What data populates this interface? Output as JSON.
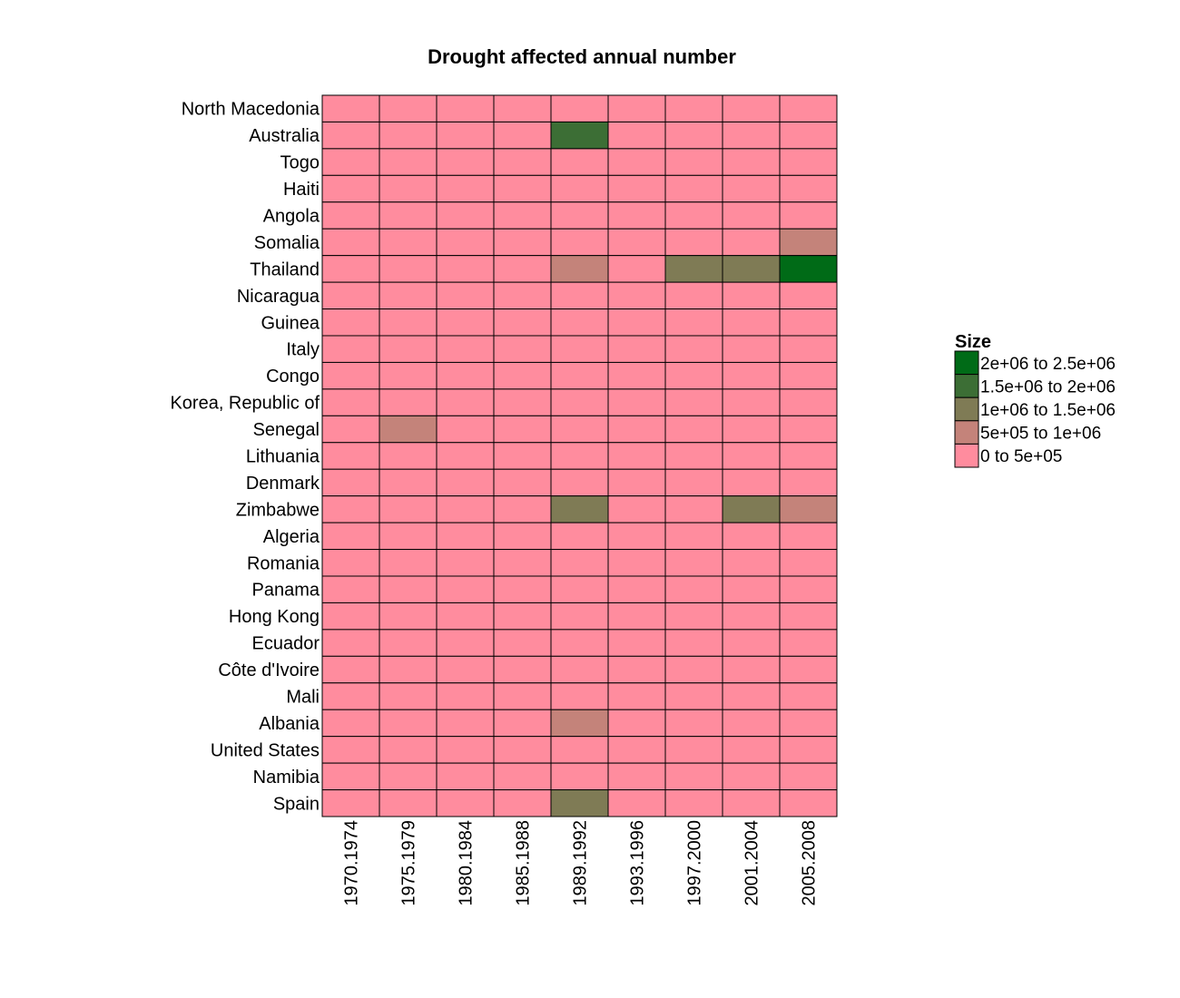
{
  "chart_data": {
    "type": "heatmap",
    "title": "Drought affected annual number",
    "xlabel": "",
    "ylabel": "",
    "x_categories": [
      "1970.1974",
      "1975.1979",
      "1980.1984",
      "1985.1988",
      "1989.1992",
      "1993.1996",
      "1997.2000",
      "2001.2004",
      "2005.2008"
    ],
    "y_categories": [
      "North Macedonia",
      "Australia",
      "Togo",
      "Haiti",
      "Angola",
      "Somalia",
      "Thailand",
      "Nicaragua",
      "Guinea",
      "Italy",
      "Congo",
      "Korea, Republic of",
      "Senegal",
      "Lithuania",
      "Denmark",
      "Zimbabwe",
      "Algeria",
      "Romania",
      "Panama",
      "Hong Kong",
      "Ecuador",
      "Côte d'Ivoire",
      "Mali",
      "Albania",
      "United States",
      "Namibia",
      "Spain"
    ],
    "bin_index_matrix": [
      [
        0,
        0,
        0,
        0,
        0,
        0,
        0,
        0,
        0
      ],
      [
        0,
        0,
        0,
        0,
        3,
        0,
        0,
        0,
        0
      ],
      [
        0,
        0,
        0,
        0,
        0,
        0,
        0,
        0,
        0
      ],
      [
        0,
        0,
        0,
        0,
        0,
        0,
        0,
        0,
        0
      ],
      [
        0,
        0,
        0,
        0,
        0,
        0,
        0,
        0,
        0
      ],
      [
        0,
        0,
        0,
        0,
        0,
        0,
        0,
        0,
        1
      ],
      [
        0,
        0,
        0,
        0,
        1,
        0,
        2,
        2,
        4
      ],
      [
        0,
        0,
        0,
        0,
        0,
        0,
        0,
        0,
        0
      ],
      [
        0,
        0,
        0,
        0,
        0,
        0,
        0,
        0,
        0
      ],
      [
        0,
        0,
        0,
        0,
        0,
        0,
        0,
        0,
        0
      ],
      [
        0,
        0,
        0,
        0,
        0,
        0,
        0,
        0,
        0
      ],
      [
        0,
        0,
        0,
        0,
        0,
        0,
        0,
        0,
        0
      ],
      [
        0,
        1,
        0,
        0,
        0,
        0,
        0,
        0,
        0
      ],
      [
        0,
        0,
        0,
        0,
        0,
        0,
        0,
        0,
        0
      ],
      [
        0,
        0,
        0,
        0,
        0,
        0,
        0,
        0,
        0
      ],
      [
        0,
        0,
        0,
        0,
        2,
        0,
        0,
        2,
        1
      ],
      [
        0,
        0,
        0,
        0,
        0,
        0,
        0,
        0,
        0
      ],
      [
        0,
        0,
        0,
        0,
        0,
        0,
        0,
        0,
        0
      ],
      [
        0,
        0,
        0,
        0,
        0,
        0,
        0,
        0,
        0
      ],
      [
        0,
        0,
        0,
        0,
        0,
        0,
        0,
        0,
        0
      ],
      [
        0,
        0,
        0,
        0,
        0,
        0,
        0,
        0,
        0
      ],
      [
        0,
        0,
        0,
        0,
        0,
        0,
        0,
        0,
        0
      ],
      [
        0,
        0,
        0,
        0,
        0,
        0,
        0,
        0,
        0
      ],
      [
        0,
        0,
        0,
        0,
        1,
        0,
        0,
        0,
        0
      ],
      [
        0,
        0,
        0,
        0,
        0,
        0,
        0,
        0,
        0
      ],
      [
        0,
        0,
        0,
        0,
        0,
        0,
        0,
        0,
        0
      ],
      [
        0,
        0,
        0,
        0,
        2,
        0,
        0,
        0,
        0
      ]
    ],
    "legend": {
      "title": "Size",
      "placement": "right",
      "bins": [
        {
          "label": "0 to 5e+05",
          "range": [
            0,
            500000
          ],
          "color": "#ff8c9e"
        },
        {
          "label": "5e+05 to 1e+06",
          "range": [
            500000,
            1000000
          ],
          "color": "#c4837a"
        },
        {
          "label": "1e+06 to 1.5e+06",
          "range": [
            1000000,
            1500000
          ],
          "color": "#7f7b55"
        },
        {
          "label": "1.5e+06 to 2e+06",
          "range": [
            1500000,
            2000000
          ],
          "color": "#3c6e35"
        },
        {
          "label": "2e+06 to 2.5e+06",
          "range": [
            2000000,
            2500000
          ],
          "color": "#006b17"
        }
      ]
    },
    "grid": true
  }
}
